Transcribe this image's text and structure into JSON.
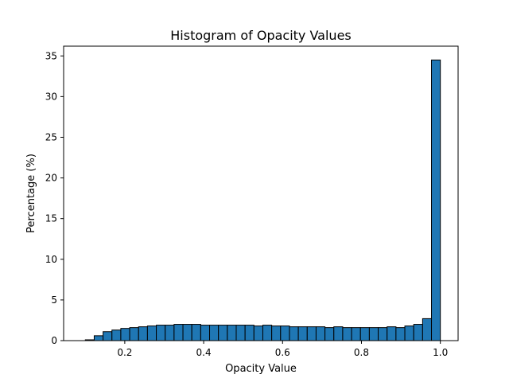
{
  "chart_data": {
    "type": "bar",
    "title": "Histogram of Opacity Values",
    "xlabel": "Opacity Value",
    "ylabel": "Percentage (%)",
    "xlim": [
      0.045,
      1.045
    ],
    "ylim": [
      0,
      36.2
    ],
    "xticks": [
      0.2,
      0.4,
      0.6,
      0.8,
      1.0
    ],
    "xtick_labels": [
      "0.2",
      "0.4",
      "0.6",
      "0.8",
      "1.0"
    ],
    "yticks": [
      0,
      5,
      10,
      15,
      20,
      25,
      30,
      35
    ],
    "ytick_labels": [
      "0",
      "5",
      "10",
      "15",
      "20",
      "25",
      "30",
      "35"
    ],
    "grid": false,
    "bar_color": "#1f77b4",
    "edge_color": "#000000",
    "bin_edges": [
      0.1,
      0.1225,
      0.145,
      0.1675,
      0.19,
      0.2125,
      0.235,
      0.2575,
      0.28,
      0.3025,
      0.325,
      0.3475,
      0.37,
      0.3925,
      0.415,
      0.4375,
      0.46,
      0.4825,
      0.505,
      0.5275,
      0.55,
      0.5725,
      0.595,
      0.6175,
      0.64,
      0.6625,
      0.685,
      0.7075,
      0.73,
      0.7525,
      0.775,
      0.7975,
      0.82,
      0.8425,
      0.865,
      0.8875,
      0.91,
      0.9325,
      0.955,
      0.9775,
      1.0
    ],
    "values": [
      0.1,
      0.6,
      1.1,
      1.3,
      1.5,
      1.6,
      1.7,
      1.8,
      1.9,
      1.9,
      2.0,
      2.0,
      2.0,
      1.9,
      1.9,
      1.9,
      1.9,
      1.9,
      1.9,
      1.8,
      1.9,
      1.8,
      1.8,
      1.7,
      1.7,
      1.7,
      1.7,
      1.6,
      1.7,
      1.6,
      1.6,
      1.6,
      1.6,
      1.6,
      1.7,
      1.6,
      1.8,
      2.0,
      2.7,
      34.5
    ]
  }
}
